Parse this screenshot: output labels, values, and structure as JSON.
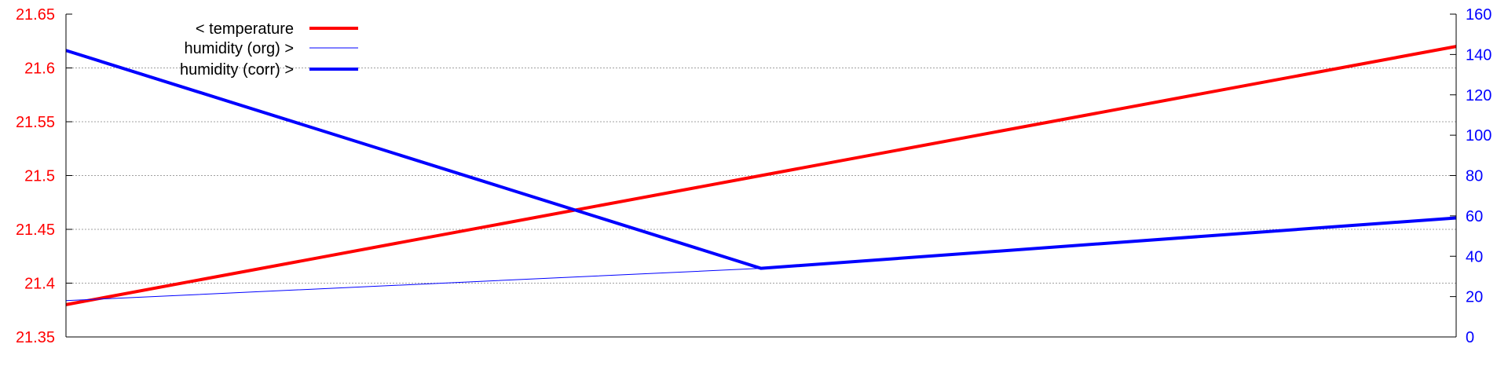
{
  "chart_data": {
    "type": "line",
    "x": [
      0,
      1,
      2
    ],
    "grid": true,
    "legend_position": "top-left",
    "axes": {
      "left": {
        "ylim": [
          21.35,
          21.65
        ],
        "ticks": [
          "21.35",
          "21.4",
          "21.45",
          "21.5",
          "21.55",
          "21.6",
          "21.65"
        ],
        "tick_values": [
          21.35,
          21.4,
          21.45,
          21.5,
          21.55,
          21.6,
          21.65
        ],
        "color": "#ff0000"
      },
      "right": {
        "ylim": [
          0,
          160
        ],
        "ticks": [
          "0",
          "20",
          "40",
          "60",
          "80",
          "100",
          "120",
          "140",
          "160"
        ],
        "tick_values": [
          0,
          20,
          40,
          60,
          80,
          100,
          120,
          140,
          160
        ],
        "color": "#0000ff"
      }
    },
    "series": [
      {
        "name": "< temperature",
        "axis": "left",
        "values": [
          21.38,
          21.5,
          21.62
        ],
        "color": "#ff0000",
        "style": "thick"
      },
      {
        "name": "humidity (org) >",
        "axis": "right",
        "values": [
          18,
          34,
          59
        ],
        "color": "#0000ff",
        "style": "thin"
      },
      {
        "name": "humidity (corr) >",
        "axis": "right",
        "values": [
          142,
          34,
          59
        ],
        "color": "#0000ff",
        "style": "thick"
      }
    ]
  }
}
